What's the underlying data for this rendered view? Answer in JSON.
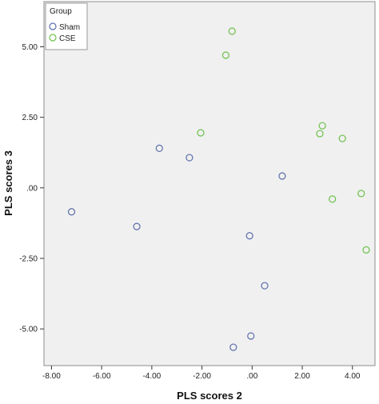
{
  "chart_data": {
    "type": "scatter",
    "xlabel": "PLS scores 2",
    "ylabel": "PLS scores 3",
    "xlim": [
      -8.3,
      4.9
    ],
    "ylim": [
      -6.3,
      6.6
    ],
    "x_ticks": [
      -8,
      -6,
      -4,
      -2,
      0,
      2,
      4
    ],
    "x_tick_labels": [
      "-8.00",
      "-6.00",
      "-4.00",
      "-2.00",
      ".00",
      "2.00",
      "4.00"
    ],
    "y_ticks": [
      5,
      2.5,
      0,
      -2.5,
      -5
    ],
    "y_tick_labels": [
      "5.00",
      "2.50",
      ".00",
      "-2.50",
      "-5.00"
    ],
    "grid": false,
    "legend": {
      "title": "Group",
      "placement": "top-left",
      "entries": [
        {
          "name": "Sham",
          "color": "#5b6dab"
        },
        {
          "name": "CSE",
          "color": "#6cc04a"
        }
      ]
    },
    "series": [
      {
        "name": "Sham",
        "color": "#5b6dab",
        "points": [
          {
            "x": -7.2,
            "y": -0.85
          },
          {
            "x": -3.7,
            "y": 1.4
          },
          {
            "x": -2.5,
            "y": 1.07
          },
          {
            "x": -4.6,
            "y": -1.37
          },
          {
            "x": 1.2,
            "y": 0.42
          },
          {
            "x": -0.1,
            "y": -1.7
          },
          {
            "x": 0.5,
            "y": -3.47
          },
          {
            "x": -0.05,
            "y": -5.25
          },
          {
            "x": -0.75,
            "y": -5.65
          }
        ]
      },
      {
        "name": "CSE",
        "color": "#6cc04a",
        "points": [
          {
            "x": -0.8,
            "y": 5.55
          },
          {
            "x": -1.05,
            "y": 4.7
          },
          {
            "x": -2.05,
            "y": 1.95
          },
          {
            "x": 2.8,
            "y": 2.2
          },
          {
            "x": 2.7,
            "y": 1.92
          },
          {
            "x": 3.6,
            "y": 1.75
          },
          {
            "x": 4.35,
            "y": -0.2
          },
          {
            "x": 3.2,
            "y": -0.4
          },
          {
            "x": 4.55,
            "y": -2.2
          }
        ]
      }
    ]
  }
}
